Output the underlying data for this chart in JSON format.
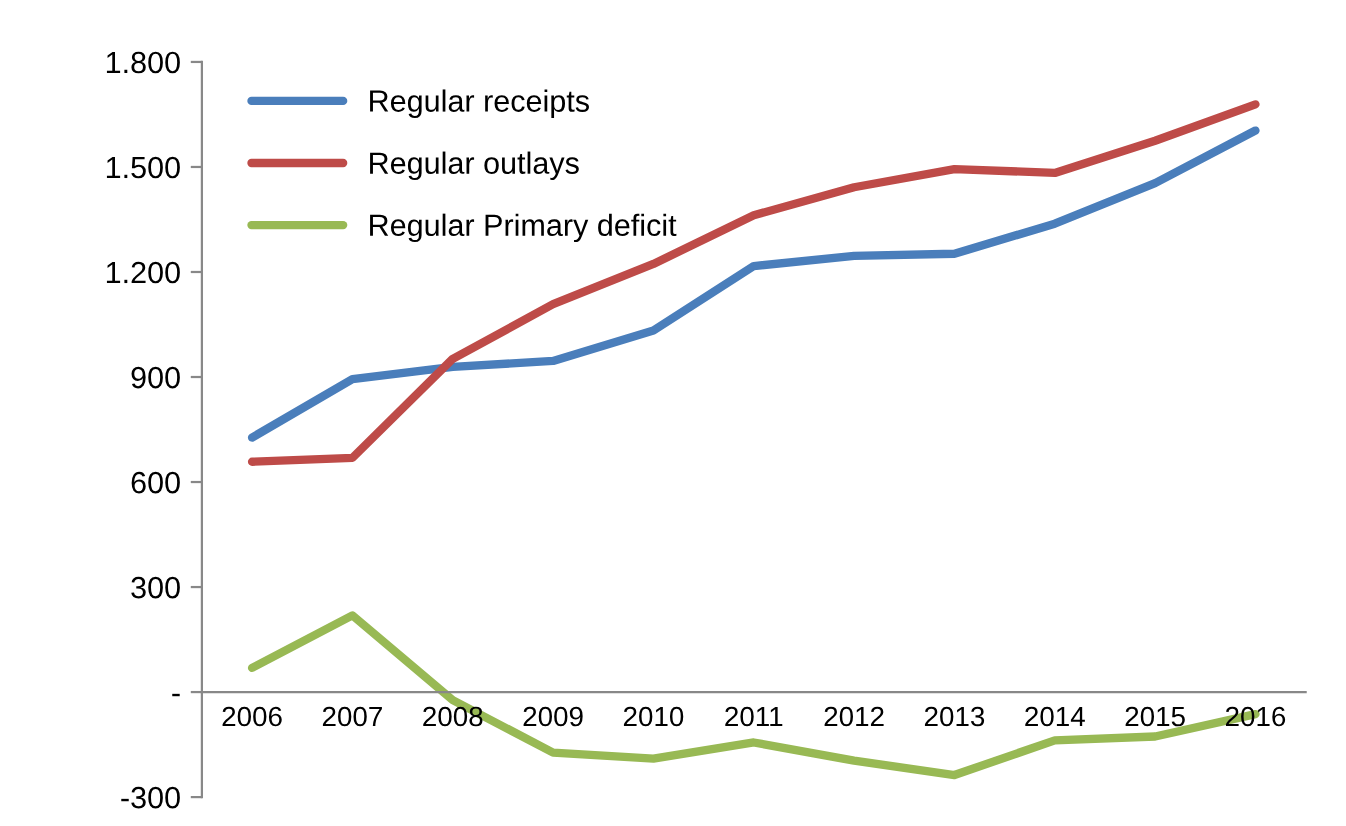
{
  "chart_data": {
    "type": "line",
    "categories": [
      "2006",
      "2007",
      "2008",
      "2009",
      "2010",
      "2011",
      "2012",
      "2013",
      "2014",
      "2015",
      "2016"
    ],
    "series": [
      {
        "name": "Regular receipts",
        "color": "#4a7ebb",
        "values": [
          727,
          894,
          929,
          946,
          1033,
          1217,
          1246,
          1252,
          1338,
          1454,
          1604
        ]
      },
      {
        "name": "Regular outlays",
        "color": "#be4b48",
        "values": [
          658,
          669,
          952,
          1108,
          1223,
          1362,
          1442,
          1494,
          1483,
          1575,
          1679
        ]
      },
      {
        "name": "Regular Primary deficit",
        "color": "#98b954",
        "values": [
          69,
          219,
          -23,
          -173,
          -190,
          -144,
          -196,
          -237,
          -138,
          -127,
          -63
        ]
      }
    ],
    "ylim": [
      -300,
      1800
    ],
    "yticks": [
      {
        "value": -300,
        "label": "-300"
      },
      {
        "value": 0,
        "label": "-"
      },
      {
        "value": 300,
        "label": "300"
      },
      {
        "value": 600,
        "label": "600"
      },
      {
        "value": 900,
        "label": "900"
      },
      {
        "value": 1200,
        "label": "1.200"
      },
      {
        "value": 1500,
        "label": "1.500"
      },
      {
        "value": 1800,
        "label": "1.800"
      }
    ],
    "grid": false,
    "legend": "top left",
    "marker": "none",
    "line_style": "solid"
  }
}
